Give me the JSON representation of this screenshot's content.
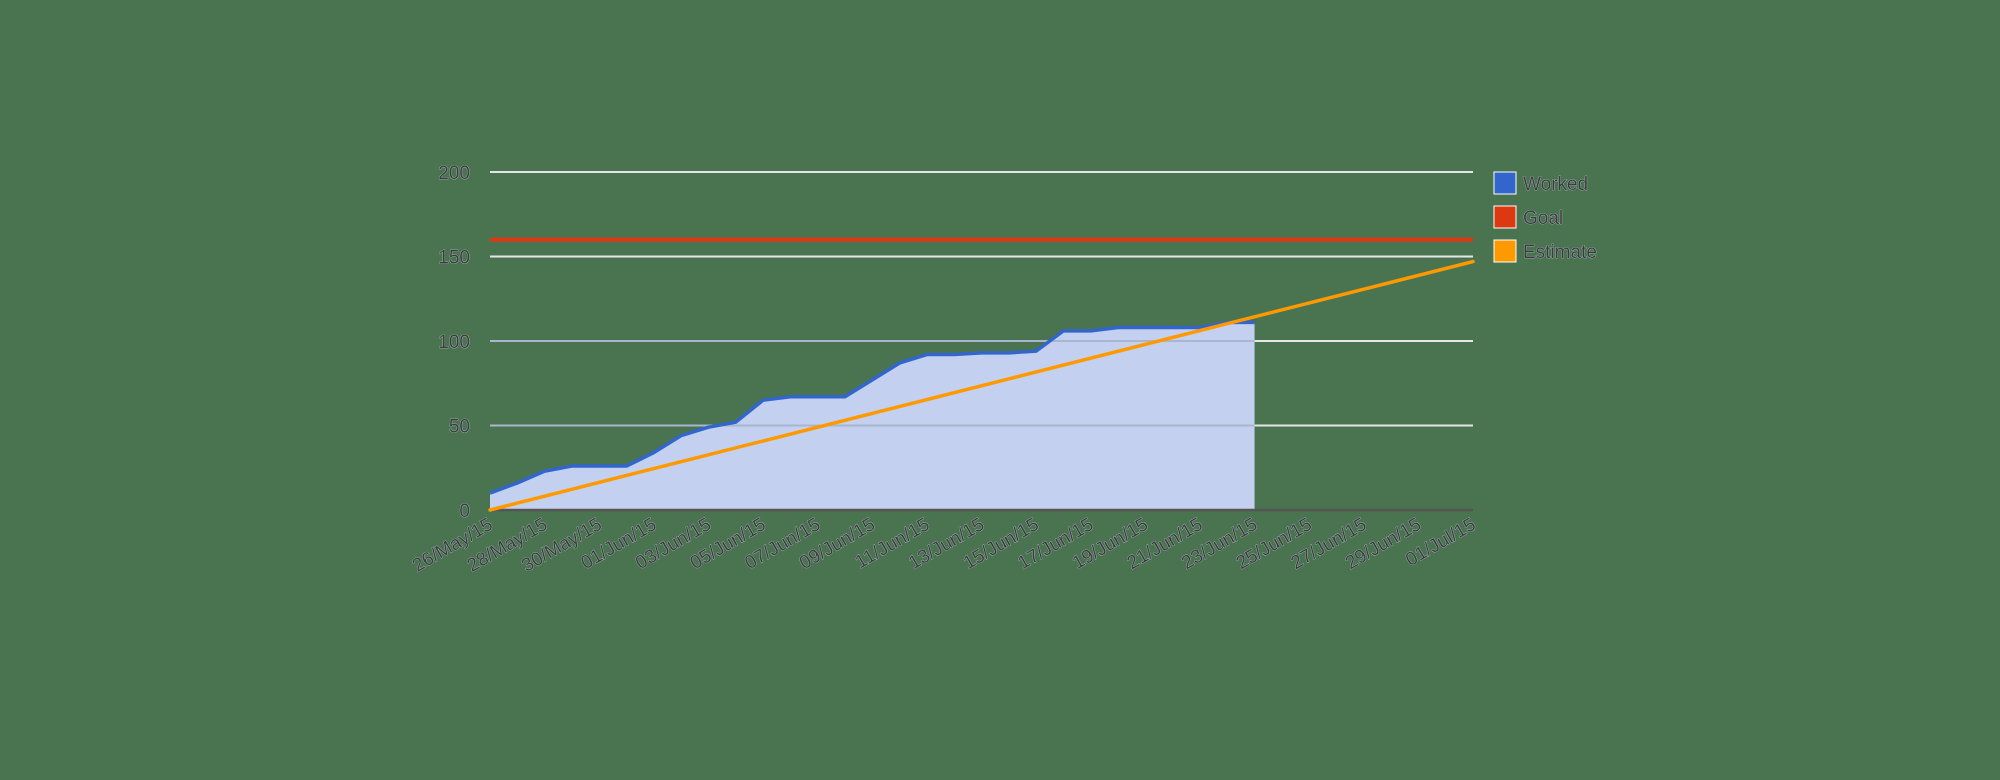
{
  "chart_data": {
    "type": "line",
    "title": "",
    "xlabel": "",
    "ylabel": "",
    "ylim": [
      0,
      200
    ],
    "yticks": [
      0,
      50,
      100,
      150,
      200
    ],
    "grid": true,
    "legend_position": "right",
    "x_tick_labels": [
      "26/May/15",
      "28/May/15",
      "30/May/15",
      "01/Jun/15",
      "03/Jun/15",
      "05/Jun/15",
      "07/Jun/15",
      "09/Jun/15",
      "11/Jun/15",
      "13/Jun/15",
      "15/Jun/15",
      "17/Jun/15",
      "19/Jun/15",
      "21/Jun/15",
      "23/Jun/15",
      "25/Jun/15",
      "27/Jun/15",
      "29/Jun/15",
      "01/Jul/15"
    ],
    "x_days_total": 36,
    "series": [
      {
        "name": "Worked",
        "color": "#3366cc",
        "fill": "#c3d0ef",
        "type": "area",
        "x_start_day": 0,
        "values": [
          10,
          16,
          23,
          26,
          26,
          26,
          34,
          44,
          49,
          52,
          65,
          67,
          67,
          67,
          77,
          87,
          92,
          92,
          93,
          93,
          94,
          106,
          106,
          108,
          108,
          108,
          108,
          111,
          111
        ]
      },
      {
        "name": "Goal",
        "color": "#dc3912",
        "type": "line",
        "constant": 160
      },
      {
        "name": "Estimate",
        "color": "#ff9900",
        "type": "line",
        "from": {
          "day": 0,
          "value": 0
        },
        "to": {
          "day": 36,
          "value": 147
        }
      }
    ]
  },
  "legend": {
    "items": [
      {
        "label": "Worked",
        "color": "#3366cc"
      },
      {
        "label": "Goal",
        "color": "#dc3912"
      },
      {
        "label": "Estimate",
        "color": "#ff9900"
      }
    ]
  }
}
